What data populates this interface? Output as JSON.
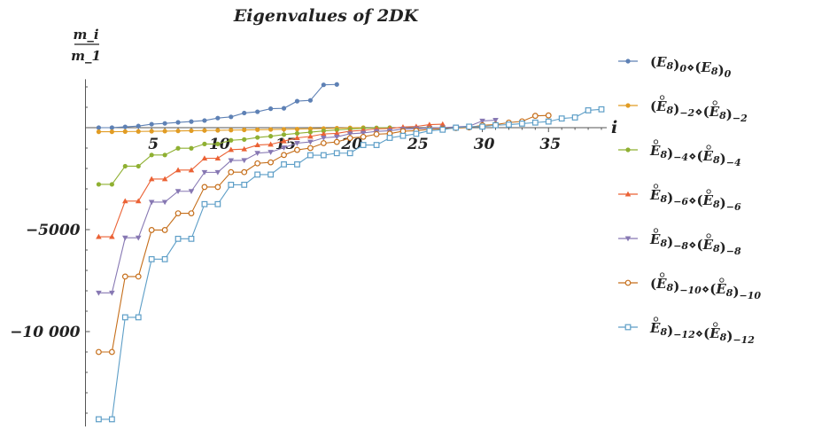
{
  "chart_data": {
    "type": "line",
    "title": "Eigenvalues of  2DK",
    "xlabel": "i",
    "ylabel": {
      "numerator": "m_i",
      "denominator": "m_1"
    },
    "xlim": [
      0,
      39
    ],
    "ylim": [
      -14500,
      2200
    ],
    "xticks": [
      5,
      10,
      15,
      20,
      25,
      30,
      35
    ],
    "yticks": [
      {
        "value": -5000,
        "label": "−5000"
      },
      {
        "value": -10000,
        "label": "−10 000"
      }
    ],
    "grid": false,
    "legend_position": "right",
    "series": [
      {
        "name": "(E8)0⋄(E8)0",
        "legend": {
          "open": "(",
          "base": "E",
          "sub8": "8",
          "close": ")",
          "sub": "0",
          "ring": false
        },
        "color": "#5E81B5",
        "marker": "circle",
        "x": [
          1,
          2,
          3,
          4,
          5,
          6,
          7,
          8,
          9,
          10,
          11,
          12,
          13,
          14,
          15,
          16,
          17,
          18,
          19
        ],
        "y": [
          0,
          0,
          40,
          80,
          170,
          210,
          260,
          300,
          350,
          470,
          530,
          720,
          780,
          930,
          950,
          1300,
          1340,
          2100,
          2120
        ]
      },
      {
        "name": "(E8)−2⋄(E8)−2",
        "legend": {
          "open": "(",
          "base": "E",
          "sub8": "8",
          "close": ")",
          "sub": "−2",
          "ring": true
        },
        "color": "#E19C24",
        "marker": "circle",
        "x": [
          1,
          2,
          3,
          4,
          5,
          6,
          7,
          8,
          9,
          10,
          11,
          12,
          13,
          14,
          15,
          16,
          17,
          18,
          19,
          20,
          21
        ],
        "y": [
          -200,
          -200,
          -190,
          -185,
          -175,
          -170,
          -160,
          -150,
          -140,
          -130,
          -120,
          -110,
          -100,
          -90,
          -80,
          -70,
          -55,
          -40,
          -25,
          -10,
          0
        ]
      },
      {
        "name": "E8)−4⋄(E8)−4",
        "legend": {
          "open": "",
          "base": "E",
          "sub8": "8",
          "close": ")",
          "sub": "−4",
          "ring": true
        },
        "color": "#8FB032",
        "marker": "circle",
        "x": [
          1,
          2,
          3,
          4,
          5,
          6,
          7,
          8,
          9,
          10,
          11,
          12,
          13,
          14,
          15,
          16,
          17,
          18,
          19,
          20,
          21,
          22,
          23
        ],
        "y": [
          -2780,
          -2780,
          -1890,
          -1890,
          -1340,
          -1340,
          -1010,
          -1010,
          -800,
          -800,
          -620,
          -580,
          -480,
          -420,
          -340,
          -280,
          -220,
          -160,
          -110,
          -70,
          -30,
          -10,
          0
        ]
      },
      {
        "name": "E8)−6⋄(E8)−6",
        "legend": {
          "open": "",
          "base": "E",
          "sub8": "8",
          "close": ")",
          "sub": "−6",
          "ring": true
        },
        "color": "#EB6235",
        "marker": "triangle",
        "x": [
          1,
          2,
          3,
          4,
          5,
          6,
          7,
          8,
          9,
          10,
          11,
          12,
          13,
          14,
          15,
          16,
          17,
          18,
          19,
          20,
          21,
          22,
          23,
          24,
          25,
          26,
          27
        ],
        "y": [
          -5350,
          -5350,
          -3600,
          -3600,
          -2520,
          -2520,
          -2080,
          -2080,
          -1500,
          -1500,
          -1080,
          -1050,
          -850,
          -820,
          -660,
          -500,
          -430,
          -310,
          -280,
          -170,
          -130,
          -60,
          -40,
          30,
          60,
          150,
          170
        ]
      },
      {
        "name": "E8)−8⋄(E8)−8",
        "legend": {
          "open": "",
          "base": "E",
          "sub8": "8",
          "close": ")",
          "sub": "−8",
          "ring": true
        },
        "color": "#8778B3",
        "marker": "triangle-down",
        "x": [
          1,
          2,
          3,
          4,
          5,
          6,
          7,
          8,
          9,
          10,
          11,
          12,
          13,
          14,
          15,
          16,
          17,
          18,
          19,
          20,
          21,
          22,
          23,
          24,
          25,
          26,
          27,
          28,
          29,
          30,
          31
        ],
        "y": [
          -8100,
          -8100,
          -5400,
          -5400,
          -3650,
          -3650,
          -3120,
          -3120,
          -2190,
          -2190,
          -1610,
          -1600,
          -1250,
          -1200,
          -980,
          -760,
          -700,
          -500,
          -450,
          -300,
          -260,
          -180,
          -150,
          -70,
          -50,
          -20,
          0,
          40,
          70,
          330,
          370
        ]
      },
      {
        "name": "(E8)−10⋄(E8)−10",
        "legend": {
          "open": "(",
          "base": "E",
          "sub8": "8",
          "close": ")",
          "sub": "−10",
          "ring": true
        },
        "color": "#C56E1A",
        "marker": "open-circle",
        "x": [
          1,
          2,
          3,
          4,
          5,
          6,
          7,
          8,
          9,
          10,
          11,
          12,
          13,
          14,
          15,
          16,
          17,
          18,
          19,
          20,
          21,
          22,
          23,
          24,
          25,
          26,
          27,
          28,
          29,
          30,
          31,
          32,
          33,
          34,
          35
        ],
        "y": [
          -11000,
          -11000,
          -7300,
          -7300,
          -5020,
          -5020,
          -4200,
          -4200,
          -2910,
          -2910,
          -2180,
          -2180,
          -1750,
          -1700,
          -1340,
          -1090,
          -1000,
          -760,
          -700,
          -510,
          -450,
          -320,
          -290,
          -170,
          -150,
          -80,
          -50,
          -20,
          10,
          120,
          150,
          250,
          310,
          580,
          600
        ]
      },
      {
        "name": "E8)−12⋄(E8)−12",
        "legend": {
          "open": "",
          "base": "E",
          "sub8": "8",
          "close": ")",
          "sub": "−12",
          "ring": true
        },
        "color": "#5D9EC7",
        "marker": "open-square",
        "x": [
          1,
          2,
          3,
          4,
          5,
          6,
          7,
          8,
          9,
          10,
          11,
          12,
          13,
          14,
          15,
          16,
          17,
          18,
          19,
          20,
          21,
          22,
          23,
          24,
          25,
          26,
          27,
          28,
          29,
          30,
          31,
          32,
          33,
          34,
          35,
          36,
          37,
          38,
          39
        ],
        "y": [
          -14300,
          -14300,
          -9300,
          -9300,
          -6450,
          -6450,
          -5450,
          -5450,
          -3750,
          -3750,
          -2800,
          -2800,
          -2300,
          -2300,
          -1800,
          -1800,
          -1350,
          -1350,
          -1250,
          -1250,
          -850,
          -850,
          -500,
          -400,
          -300,
          -150,
          -100,
          0,
          50,
          50,
          120,
          150,
          200,
          250,
          300,
          450,
          500,
          850,
          900
        ]
      }
    ]
  }
}
